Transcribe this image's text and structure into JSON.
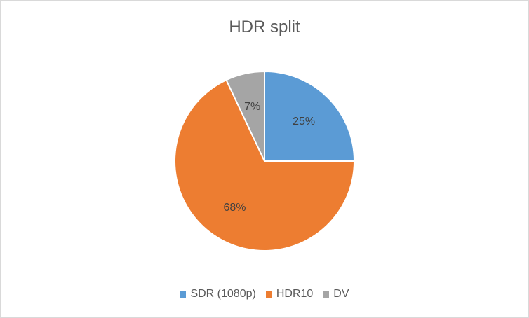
{
  "chart_data": {
    "type": "pie",
    "title": "HDR split",
    "categories": [
      "SDR (1080p)",
      "HDR10",
      "DV"
    ],
    "values": [
      25,
      68,
      7
    ],
    "data_labels": [
      "25%",
      "68%",
      "7%"
    ],
    "colors": [
      "#5b9bd5",
      "#ed7d31",
      "#a5a5a5"
    ],
    "legend_position": "bottom"
  }
}
